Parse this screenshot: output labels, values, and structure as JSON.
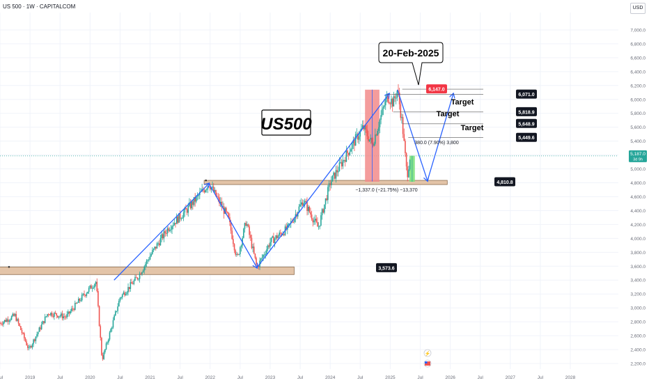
{
  "header": {
    "symbol_line": "US 500 · 1W · CAPITALCOM",
    "currency": "USD"
  },
  "colors": {
    "up": "#26a69a",
    "down": "#ef5350",
    "blue": "#2962ff",
    "zone_fill": "#e3c4a8",
    "zone_stroke": "#8b6b4b",
    "red_rect": "#f28b8b",
    "green_rect": "#80e27e",
    "label_bg": "#131722",
    "label_red": "#f23645",
    "axis_text": "#6a6d78",
    "grid": "#f0f3fa"
  },
  "chart_data": {
    "type": "candlestick",
    "ylim": [
      2120,
      7250
    ],
    "xlim": [
      2018.5,
      2028.8
    ],
    "y_ticks": [
      2200,
      2400,
      2600,
      2800,
      3000,
      3200,
      3400,
      3600,
      3800,
      4000,
      4200,
      4400,
      4600,
      4800,
      5000,
      5200,
      5400,
      5600,
      5800,
      6000,
      6200,
      6400,
      6600,
      6800,
      7000
    ],
    "y_tick_labels": [
      "2,200.0",
      "2,400.0",
      "2,600.0",
      "2,800.0",
      "3,000.0",
      "3,200.0",
      "3,400.0",
      "3,600.0",
      "3,800.0",
      "4,000.0",
      "4,200.0",
      "4,400.0",
      "4,600.0",
      "4,800.0",
      "5,000.0",
      "5,200.0",
      "5,400.0",
      "5,600.0",
      "5,800.0",
      "6,000.0",
      "6,200.0",
      "6,400.0",
      "6,600.0",
      "6,800.0",
      "7,000.0"
    ],
    "x_ticks": [
      {
        "t": 2018.5,
        "label": "Jul"
      },
      {
        "t": 2019.0,
        "label": "2019"
      },
      {
        "t": 2019.5,
        "label": "Jul"
      },
      {
        "t": 2020.0,
        "label": "2020"
      },
      {
        "t": 2020.5,
        "label": "Jul"
      },
      {
        "t": 2021.0,
        "label": "2021"
      },
      {
        "t": 2021.5,
        "label": "Jul"
      },
      {
        "t": 2022.0,
        "label": "2022"
      },
      {
        "t": 2022.5,
        "label": "Jul"
      },
      {
        "t": 2023.0,
        "label": "2023"
      },
      {
        "t": 2023.5,
        "label": "Jul"
      },
      {
        "t": 2024.0,
        "label": "2024"
      },
      {
        "t": 2024.5,
        "label": "Jul"
      },
      {
        "t": 2025.0,
        "label": "2025"
      },
      {
        "t": 2025.5,
        "label": "Jul"
      },
      {
        "t": 2026.0,
        "label": "2026"
      },
      {
        "t": 2026.5,
        "label": "Jul"
      },
      {
        "t": 2027.0,
        "label": "2027"
      },
      {
        "t": 2027.5,
        "label": "Jul"
      },
      {
        "t": 2028.0,
        "label": "2028"
      }
    ],
    "price_path": [
      [
        2018.5,
        2780
      ],
      [
        2018.75,
        2890
      ],
      [
        2018.98,
        2400
      ],
      [
        2019.3,
        2930
      ],
      [
        2019.6,
        2870
      ],
      [
        2019.9,
        3190
      ],
      [
        2020.1,
        3380
      ],
      [
        2020.2,
        2250
      ],
      [
        2020.5,
        3150
      ],
      [
        2020.8,
        3450
      ],
      [
        2021.0,
        3750
      ],
      [
        2021.3,
        4150
      ],
      [
        2021.6,
        4400
      ],
      [
        2021.98,
        4790
      ],
      [
        2022.3,
        4300
      ],
      [
        2022.45,
        3700
      ],
      [
        2022.6,
        4250
      ],
      [
        2022.78,
        3580
      ],
      [
        2023.0,
        3950
      ],
      [
        2023.3,
        4150
      ],
      [
        2023.55,
        4550
      ],
      [
        2023.8,
        4150
      ],
      [
        2024.0,
        4800
      ],
      [
        2024.3,
        5250
      ],
      [
        2024.55,
        5600
      ],
      [
        2024.7,
        5350
      ],
      [
        2024.95,
        6050
      ],
      [
        2025.05,
        5950
      ],
      [
        2025.12,
        6140
      ],
      [
        2025.2,
        5650
      ],
      [
        2025.28,
        4900
      ],
      [
        2025.33,
        5190
      ]
    ],
    "zones": [
      {
        "name": "support-4810",
        "t0": 2021.9,
        "t1": 2025.95,
        "y0": 4775,
        "y1": 4835,
        "label": "4,810.8"
      },
      {
        "name": "support-3573",
        "t0": 2018.3,
        "t1": 2023.4,
        "y0": 3480,
        "y1": 3590,
        "label": "3,573.6"
      }
    ],
    "price_labels": [
      {
        "value": 6147.0,
        "label": "6,147.0",
        "style": "red"
      },
      {
        "value": 6071.0,
        "label": "6,071.0",
        "style": "dark"
      },
      {
        "value": 5818.9,
        "label": "5,818.9",
        "style": "dark"
      },
      {
        "value": 5648.9,
        "label": "5,648.9",
        "style": "dark"
      },
      {
        "value": 5449.6,
        "label": "5,449.6",
        "style": "dark"
      },
      {
        "value": 4810.8,
        "label": "4,810.8",
        "style": "dark"
      },
      {
        "value": 3573.6,
        "label": "3,573.6",
        "style": "dark"
      }
    ],
    "current_price": {
      "value": 5187.0,
      "label": "5,187.0",
      "sub": "3d 9h"
    },
    "annotations": {
      "title": "US500",
      "date_callout": "20-Feb-2025",
      "targets": [
        "Target",
        "Target",
        "Target"
      ],
      "drop_measure": "−1,337.0 (−21.75%) −13,370",
      "bounce_measure": "380.0 (7.90%) 3,800"
    }
  }
}
